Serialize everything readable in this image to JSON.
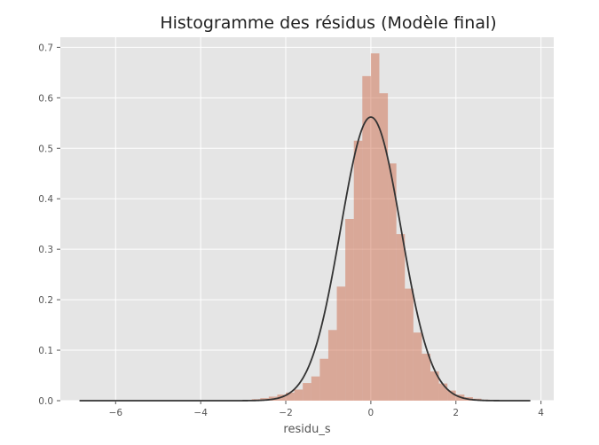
{
  "chart_data": {
    "type": "bar",
    "title": "Histogramme des résidus (Modèle final)",
    "xlabel": "residu_s",
    "ylabel": "",
    "xlim": [
      -7.3,
      4.3
    ],
    "ylim": [
      0,
      0.72
    ],
    "x_ticks": [
      -6,
      -4,
      -2,
      0,
      2,
      4
    ],
    "x_tick_labels": [
      "−6",
      "−4",
      "−2",
      "0",
      "2",
      "4"
    ],
    "y_ticks": [
      0.0,
      0.1,
      0.2,
      0.3,
      0.4,
      0.5,
      0.6,
      0.7
    ],
    "y_tick_labels": [
      "0.0",
      "0.1",
      "0.2",
      "0.3",
      "0.4",
      "0.5",
      "0.6",
      "0.7"
    ],
    "grid": true,
    "histogram": {
      "bin_width": 0.2,
      "bin_edges_start": -2.8,
      "density": [
        0.003,
        0.005,
        0.008,
        0.012,
        0.016,
        0.022,
        0.035,
        0.048,
        0.083,
        0.14,
        0.226,
        0.36,
        0.515,
        0.643,
        0.688,
        0.609,
        0.47,
        0.33,
        0.222,
        0.135,
        0.093,
        0.058,
        0.034,
        0.02,
        0.012,
        0.007,
        0.004,
        0.002
      ]
    },
    "density_curve": {
      "mean": 0.0,
      "std": 0.71,
      "x_range": [
        -6.85,
        3.75
      ]
    },
    "colors": {
      "bar": "#cd6b4c",
      "curve": "#333333",
      "plot_bg": "#e5e5e5",
      "grid": "#ffffff"
    }
  }
}
